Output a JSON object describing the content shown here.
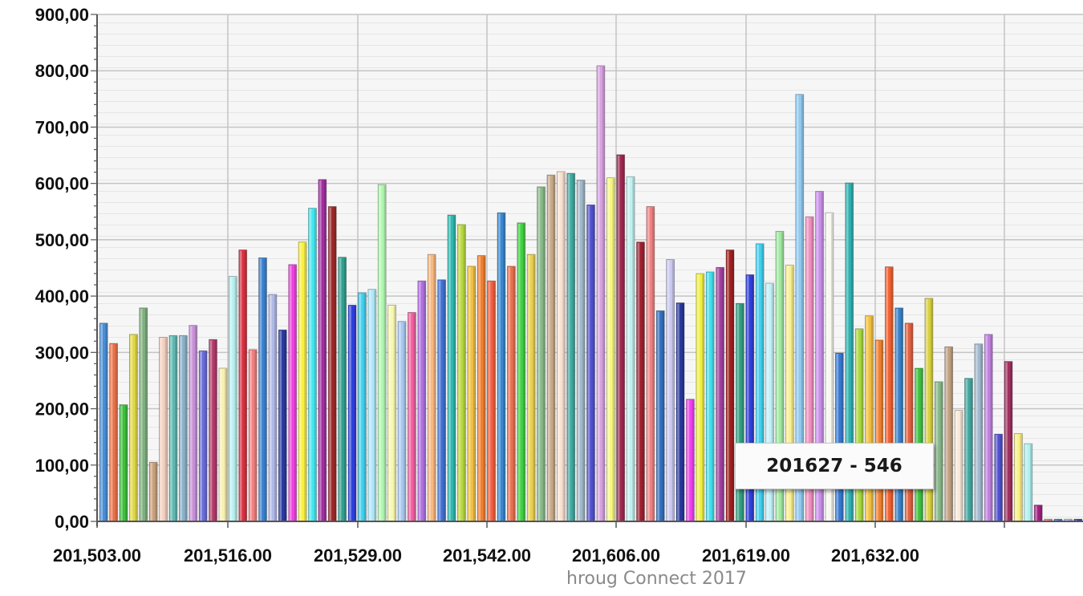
{
  "caption": "hroug Connect 2017",
  "tooltip": "201627 - 546",
  "chart_data": {
    "type": "bar",
    "title": "",
    "xlabel": "",
    "ylabel": "",
    "ylim": [
      0,
      900
    ],
    "yticks": [
      "0,00",
      "100,00",
      "200,00",
      "300,00",
      "400,00",
      "500,00",
      "600,00",
      "700,00",
      "800,00",
      "900,00"
    ],
    "xticks": [
      "201,503.00",
      "201,516.00",
      "201,529.00",
      "201,542.00",
      "201,606.00",
      "201,619.00",
      "201,632.00",
      ""
    ],
    "grid": true,
    "legend": "none",
    "values": [
      352,
      316,
      207,
      332,
      379,
      105,
      327,
      330,
      330,
      348,
      303,
      323,
      272,
      435,
      482,
      305,
      468,
      403,
      340,
      456,
      496,
      556,
      607,
      559,
      469,
      384,
      406,
      412,
      598,
      384,
      355,
      371,
      427,
      474,
      429,
      544,
      527,
      453,
      472,
      427,
      548,
      453,
      530,
      474,
      594,
      615,
      621,
      618,
      606,
      562,
      809,
      610,
      651,
      612,
      496,
      559,
      374,
      465,
      388,
      217,
      440,
      443,
      451,
      482,
      387,
      438,
      493,
      423,
      515,
      455,
      758,
      541,
      586,
      548,
      299,
      601,
      342,
      365,
      322,
      452,
      379,
      352,
      272,
      396,
      248,
      310,
      197,
      254,
      315,
      332,
      155,
      284,
      156,
      138,
      29,
      4,
      4,
      4,
      4
    ],
    "colors": [
      "#4a8fd6",
      "#e8734a",
      "#3fbf3f",
      "#e0d84a",
      "#7fb07f",
      "#c8a07a",
      "#f2d0c0",
      "#5fb8b0",
      "#8ab0c8",
      "#c890d8",
      "#6a6ad8",
      "#b03a6a",
      "#f8f0b0",
      "#b8f0f0",
      "#d83040",
      "#f08080",
      "#3a80d0",
      "#b0b8e8",
      "#2a3aa0",
      "#f040e0",
      "#f8f040",
      "#40e8f0",
      "#a030a0",
      "#a02828",
      "#30a090",
      "#3040e0",
      "#40d0f0",
      "#b0e8f8",
      "#b0f8b0",
      "#f8f8b0",
      "#a8c8f0",
      "#f060a0",
      "#b070e0",
      "#f8b880",
      "#4070d0",
      "#30b8b0",
      "#b8d840",
      "#f0c040",
      "#f08030",
      "#f06040",
      "#3888d0",
      "#e87050",
      "#40d040",
      "#e8d050",
      "#88b888",
      "#c8a888",
      "#f8e0d0",
      "#40a8a0",
      "#a0b8c8",
      "#5050d0",
      "#d8a0e0",
      "#f8f880",
      "#a02850",
      "#c0f0f0",
      "#a02030",
      "#f08080",
      "#3070c0",
      "#c8c8f0",
      "#2838a0",
      "#f040f0",
      "#f0f040",
      "#40e0f0",
      "#a040a0",
      "#a02020",
      "#30a080",
      "#3040d8",
      "#40d0f0",
      "#c0f0f8",
      "#a0e8a0",
      "#f8f090",
      "#90c8f0",
      "#f090c0",
      "#c890e8",
      "#f8f8f0",
      "#3878d0",
      "#30b0b0",
      "#a8d840",
      "#f0c040",
      "#f08030",
      "#f06030",
      "#3880c8",
      "#e06040",
      "#40c040",
      "#d8d040",
      "#88b888",
      "#c0a080",
      "#f8e8d8",
      "#40a8a0",
      "#a0b8d0",
      "#c080e0",
      "#5050d0",
      "#a03060",
      "#f8f080",
      "#b0f0f0",
      "#a02080",
      "#f08080",
      "#4070c8",
      "#b0b8e8",
      "#3040a0"
    ]
  }
}
